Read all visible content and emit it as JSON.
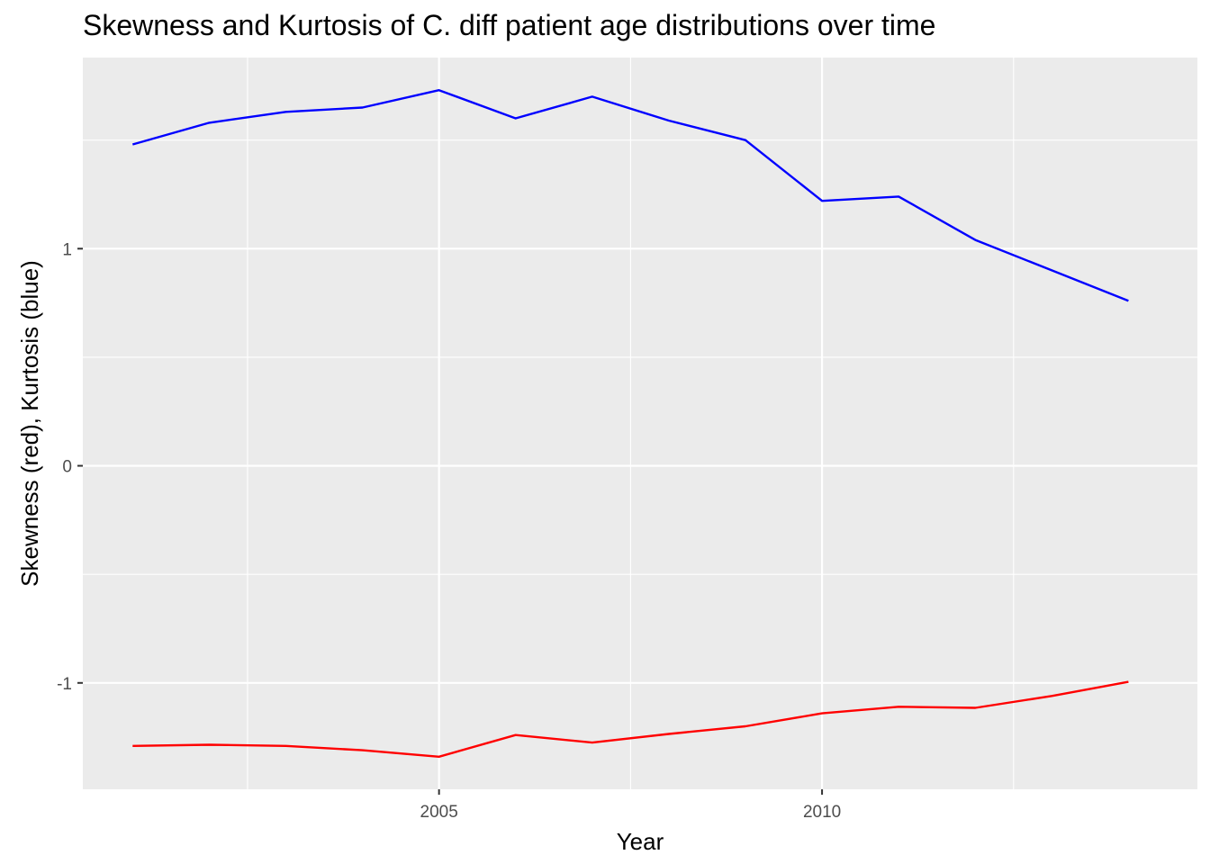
{
  "chart_data": {
    "type": "line",
    "title": "Skewness and Kurtosis of C. diff patient age distributions over time",
    "xlabel": "Year",
    "ylabel": "Skewness (red), Kurtosis (blue)",
    "x": [
      2001,
      2002,
      2003,
      2004,
      2005,
      2006,
      2007,
      2008,
      2009,
      2010,
      2011,
      2012,
      2013,
      2014
    ],
    "xlim": [
      2000.35,
      2014.9
    ],
    "ylim": [
      -1.49,
      1.88
    ],
    "x_ticks": [
      2005,
      2010
    ],
    "x_tick_labels": [
      "2005",
      "2010"
    ],
    "x_minor_ticks": [
      2002.5,
      2007.5,
      2012.5
    ],
    "y_ticks": [
      -1,
      0,
      1
    ],
    "y_tick_labels": [
      "-1",
      "0",
      "1"
    ],
    "y_minor_ticks": [
      -0.5,
      0.5,
      1.5
    ],
    "grid": true,
    "legend": "none",
    "series": [
      {
        "color": "#0000ff",
        "values": [
          1.48,
          1.58,
          1.63,
          1.65,
          1.73,
          1.6,
          1.7,
          1.59,
          1.5,
          1.22,
          1.24,
          1.04,
          0.9,
          0.76
        ]
      },
      {
        "color": "#ff0000",
        "values": [
          -1.29,
          -1.285,
          -1.29,
          -1.31,
          -1.34,
          -1.24,
          -1.275,
          -1.235,
          -1.2,
          -1.14,
          -1.11,
          -1.115,
          -1.06,
          -0.995
        ]
      }
    ]
  }
}
